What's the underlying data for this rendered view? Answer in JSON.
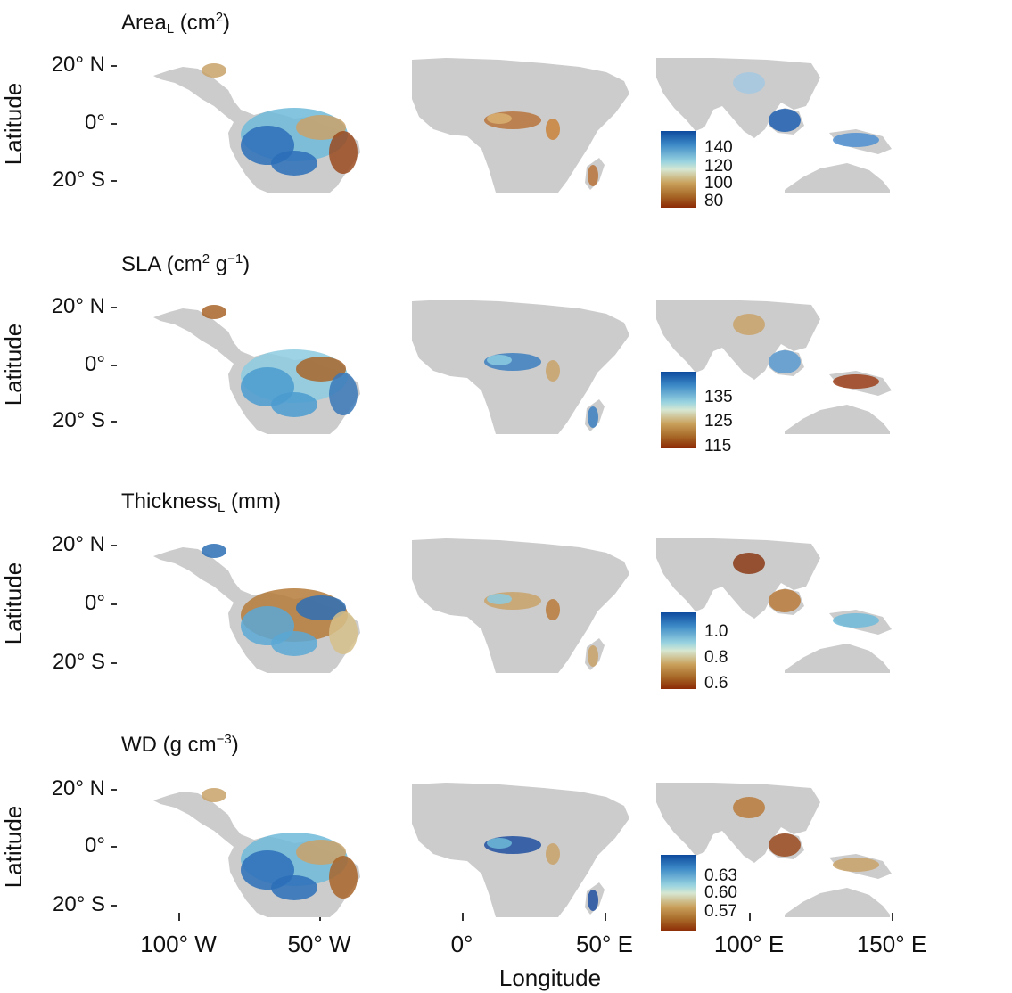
{
  "panels": [
    {
      "title_main": "Area",
      "title_sub": "L",
      "title_rest": " (cm",
      "title_sup": "2",
      "title_end": ")",
      "legend": [
        "140",
        "120",
        "100",
        "80"
      ],
      "palette": {
        "amazon": [
          "#2c6fb8",
          "#6fbad8",
          "#c9a26a",
          "#9a4a1e"
        ],
        "congo": [
          "#b8733a",
          "#d8b070",
          "#c8823a"
        ],
        "asia": [
          "#1f5fb0",
          "#4f8fd0",
          "#a5c8e0"
        ]
      }
    },
    {
      "title_main": "SLA (cm",
      "title_sub": "",
      "title_rest": "",
      "title_sup": "2",
      "title_end": " g",
      "title_sup2": "−1",
      "title_end2": ")",
      "legend": [
        "135",
        "125",
        "115"
      ],
      "palette": {
        "amazon": [
          "#4b9bd0",
          "#8ccbe0",
          "#a8652a",
          "#3a78b8"
        ],
        "congo": [
          "#3c7fc0",
          "#8ccbe0",
          "#c9a26a"
        ],
        "asia": [
          "#5a9ad0",
          "#9b3f1a",
          "#c9a26a"
        ]
      }
    },
    {
      "title_main": "Thickness",
      "title_sub": "L",
      "title_rest": " (mm)",
      "title_sup": "",
      "title_end": "",
      "legend": [
        "1.0",
        "0.8",
        "0.6"
      ],
      "palette": {
        "amazon": [
          "#5aa8d5",
          "#b57a3a",
          "#2d6fb5",
          "#d6c08a"
        ],
        "congo": [
          "#c9a26a",
          "#8ccbe0",
          "#b87a3a"
        ],
        "asia": [
          "#b87a3a",
          "#6fbad8",
          "#8a3a15"
        ]
      }
    },
    {
      "title_main": "WD (g cm",
      "title_sub": "",
      "title_rest": "",
      "title_sup": "−3",
      "title_end": ")",
      "legend": [
        "0.63",
        "0.60",
        "0.57"
      ],
      "palette": {
        "amazon": [
          "#2c6fb8",
          "#6fbad8",
          "#c9a26a",
          "#a8652a"
        ],
        "congo": [
          "#1f4fa0",
          "#6fbad8",
          "#c9a26a"
        ],
        "asia": [
          "#9a4a1e",
          "#c9a26a",
          "#b87a3a"
        ]
      }
    }
  ],
  "y_axis": {
    "caption": "Latitude",
    "ticks": [
      "20° N",
      "0°",
      "20° S"
    ]
  },
  "x_axis": {
    "caption": "Longitude",
    "ticks": [
      "100° W",
      "50° W",
      "0°",
      "50° E",
      "100° E",
      "150° E"
    ]
  },
  "colors": {
    "land": "#cccccc",
    "border": "#e6e6e6",
    "legend_top": "#0d4a9e",
    "legend_mid": "#cde9ec",
    "legend_low": "#c8a05a",
    "legend_bot": "#8c2a05"
  }
}
